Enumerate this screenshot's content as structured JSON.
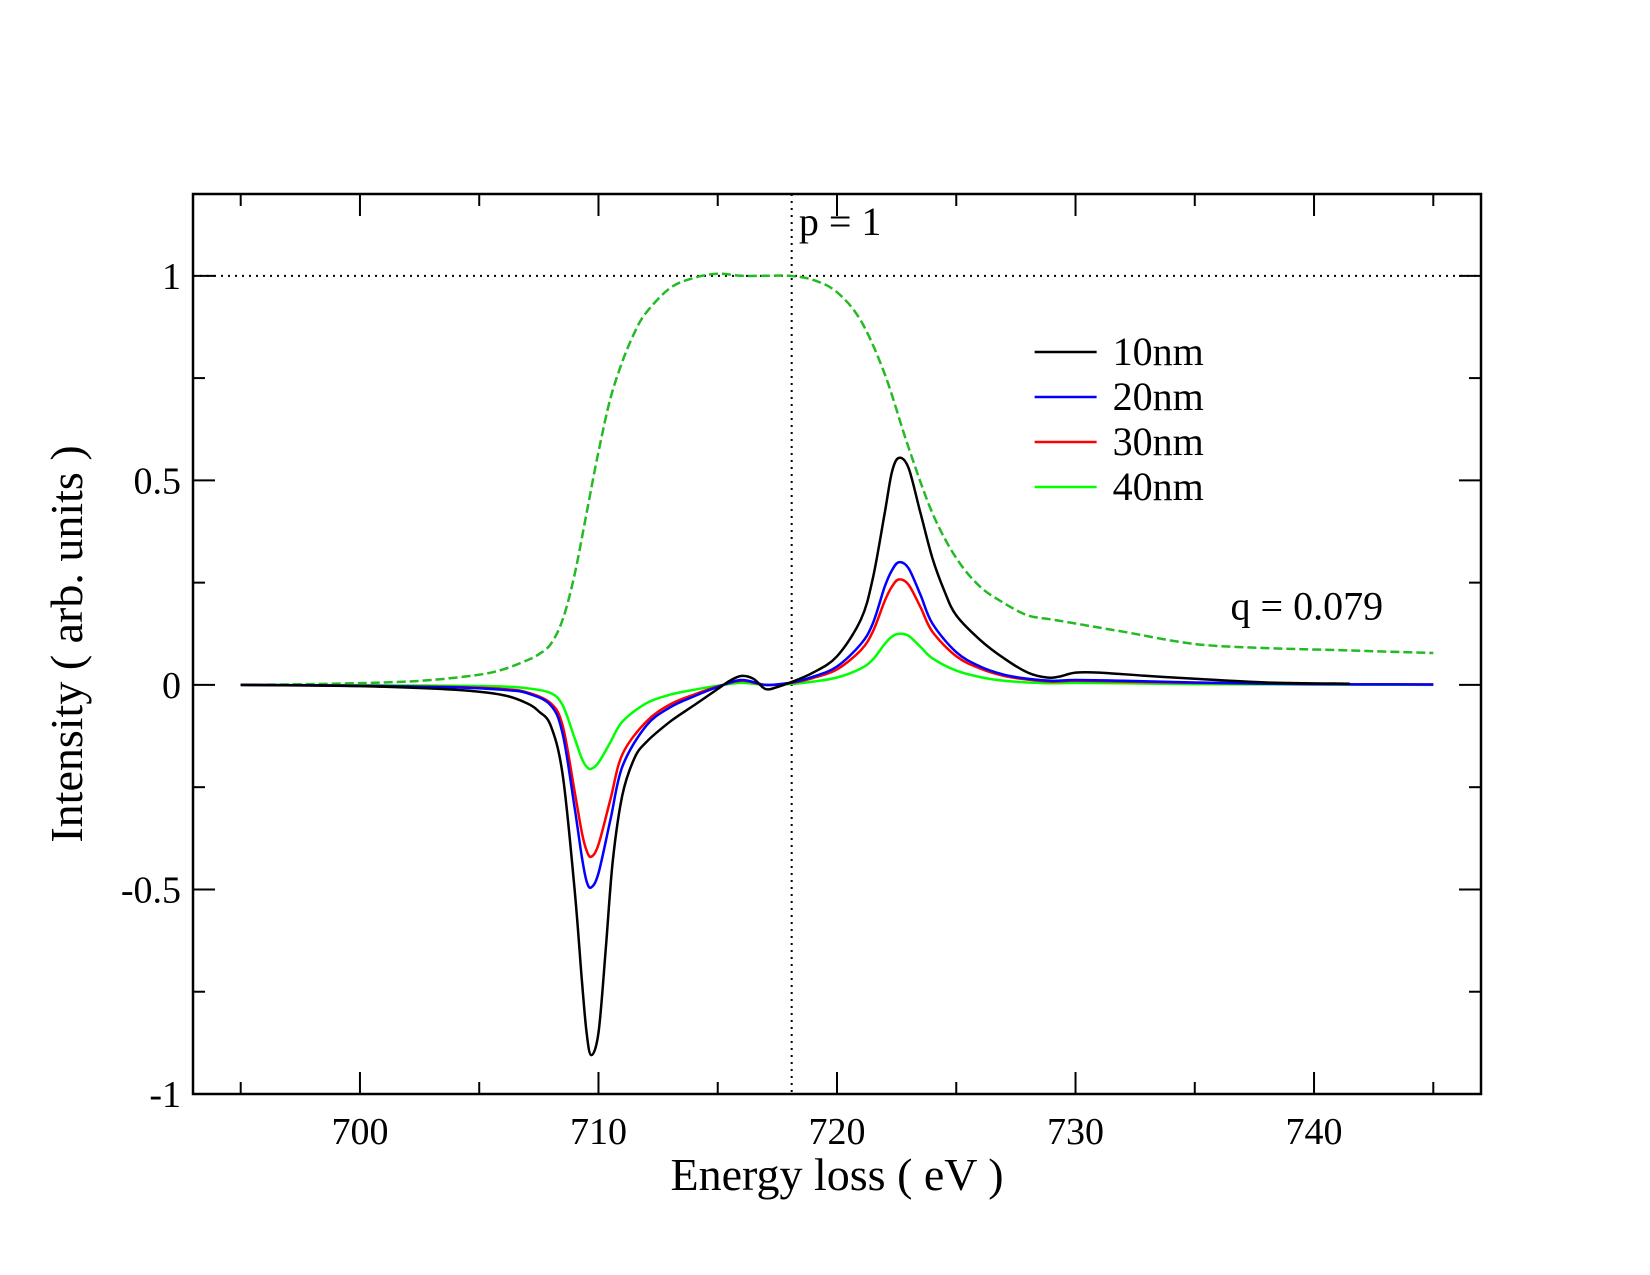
{
  "chart_data": {
    "type": "line",
    "title": "",
    "xlabel": "Energy loss ( eV )",
    "ylabel": "Intensity ( arb. units )",
    "xlim": [
      693,
      747
    ],
    "ylim": [
      -1,
      1.2
    ],
    "x_major_ticks": [
      700,
      710,
      720,
      730,
      740
    ],
    "x_tick_labels": [
      "700",
      "710",
      "720",
      "730",
      "740"
    ],
    "x_minor_ticks": [
      695,
      705,
      715,
      725,
      735,
      745
    ],
    "y_major_ticks": [
      -1,
      -0.5,
      0,
      0.5,
      1
    ],
    "y_tick_labels": [
      "-1",
      "-0.5",
      "0",
      "0.5",
      "1"
    ],
    "y_minor_ticks": [
      -0.75,
      -0.25,
      0.25,
      0.75
    ],
    "grid": false,
    "legend_position": "top-right",
    "reference_lines": [
      {
        "orientation": "horizontal",
        "value": 1,
        "style": "dotted",
        "color": "#000000"
      },
      {
        "orientation": "vertical",
        "value": 718.1,
        "style": "dotted",
        "color": "#000000"
      }
    ],
    "annotations": [
      {
        "text": "p = 1",
        "x": 718.4,
        "y": 1.1
      },
      {
        "text": "q = 0.079",
        "x": 736.5,
        "y": 0.16
      }
    ],
    "series": [
      {
        "name": "10nm",
        "color": "#000000",
        "style": "solid",
        "x": [
          695,
          700,
          704,
          706,
          707,
          707.5,
          708,
          708.5,
          709,
          709.3,
          709.5,
          709.7,
          710,
          710.3,
          710.6,
          711,
          711.5,
          712,
          713,
          714,
          715,
          715.5,
          716,
          716.5,
          717,
          717.5,
          718,
          719,
          720,
          721,
          721.5,
          722,
          722.3,
          722.6,
          723,
          723.5,
          724,
          724.5,
          725,
          726,
          727,
          728,
          728.8,
          729.3,
          730,
          731,
          733,
          735,
          738,
          741.5
        ],
        "values": [
          0,
          -0.003,
          -0.012,
          -0.025,
          -0.045,
          -0.065,
          -0.1,
          -0.22,
          -0.5,
          -0.72,
          -0.85,
          -0.905,
          -0.85,
          -0.65,
          -0.43,
          -0.27,
          -0.18,
          -0.14,
          -0.09,
          -0.05,
          -0.01,
          0.01,
          0.022,
          0.015,
          -0.01,
          -0.005,
          0.005,
          0.03,
          0.07,
          0.16,
          0.26,
          0.42,
          0.52,
          0.555,
          0.53,
          0.42,
          0.31,
          0.23,
          0.17,
          0.11,
          0.065,
          0.03,
          0.018,
          0.02,
          0.03,
          0.03,
          0.022,
          0.015,
          0.006,
          0.003
        ]
      },
      {
        "name": "20nm",
        "color": "#0000ff",
        "style": "solid",
        "x": [
          695,
          700,
          704,
          706,
          707,
          708,
          708.5,
          709,
          709.3,
          709.5,
          709.7,
          710,
          710.5,
          711,
          712,
          713,
          714,
          715,
          716,
          717,
          718,
          719,
          720,
          721,
          721.5,
          722,
          722.3,
          722.6,
          723,
          723.5,
          724,
          725,
          726,
          727,
          728,
          729,
          730,
          732,
          735,
          740,
          745
        ],
        "values": [
          0,
          -0.002,
          -0.006,
          -0.012,
          -0.02,
          -0.05,
          -0.12,
          -0.3,
          -0.42,
          -0.48,
          -0.495,
          -0.46,
          -0.33,
          -0.2,
          -0.1,
          -0.055,
          -0.028,
          -0.005,
          0.012,
          0.0,
          0.005,
          0.02,
          0.045,
          0.1,
          0.15,
          0.24,
          0.28,
          0.3,
          0.285,
          0.22,
          0.15,
          0.08,
          0.045,
          0.025,
          0.015,
          0.01,
          0.012,
          0.01,
          0.006,
          0.002,
          0.001
        ]
      },
      {
        "name": "30nm",
        "color": "#ff0000",
        "style": "solid",
        "x": [
          695,
          700,
          704,
          706,
          707,
          708,
          708.5,
          709,
          709.3,
          709.5,
          709.7,
          710,
          710.5,
          711,
          712,
          713,
          714,
          715,
          716,
          717,
          718,
          719,
          720,
          721,
          721.5,
          722,
          722.3,
          722.6,
          723,
          723.5,
          724,
          725,
          726,
          727,
          728,
          729,
          730,
          732,
          735,
          740,
          745
        ],
        "values": [
          0,
          -0.002,
          -0.005,
          -0.01,
          -0.018,
          -0.045,
          -0.1,
          -0.26,
          -0.36,
          -0.405,
          -0.42,
          -0.39,
          -0.28,
          -0.17,
          -0.09,
          -0.048,
          -0.024,
          -0.004,
          0.01,
          0.0,
          0.004,
          0.017,
          0.038,
          0.085,
          0.13,
          0.205,
          0.24,
          0.258,
          0.245,
          0.19,
          0.13,
          0.07,
          0.04,
          0.022,
          0.013,
          0.008,
          0.01,
          0.008,
          0.005,
          0.002,
          0.001
        ]
      },
      {
        "name": "40nm",
        "color": "#00ff00",
        "style": "solid",
        "x": [
          695,
          700,
          704,
          706,
          707,
          708,
          708.5,
          709,
          709.3,
          709.5,
          709.7,
          710,
          710.5,
          711,
          712,
          713,
          714,
          715,
          716,
          717,
          718,
          719,
          720,
          721,
          721.5,
          722,
          722.3,
          722.6,
          723,
          723.5,
          724,
          725,
          726,
          727,
          728,
          729,
          730,
          732,
          735,
          740,
          745
        ],
        "values": [
          0,
          -0.001,
          -0.002,
          -0.004,
          -0.008,
          -0.02,
          -0.05,
          -0.13,
          -0.18,
          -0.2,
          -0.205,
          -0.19,
          -0.14,
          -0.09,
          -0.045,
          -0.024,
          -0.012,
          -0.002,
          0.005,
          0.0,
          0.002,
          0.008,
          0.018,
          0.04,
          0.062,
          0.1,
          0.118,
          0.125,
          0.12,
          0.093,
          0.065,
          0.035,
          0.019,
          0.01,
          0.006,
          0.004,
          0.005,
          0.004,
          0.002,
          0.001,
          0.0
        ]
      },
      {
        "name": "",
        "color": "#22bb22",
        "style": "dashed",
        "x": [
          695,
          698,
          701,
          703,
          705,
          706,
          707,
          707.5,
          708,
          708.5,
          709,
          709.5,
          710,
          710.5,
          711,
          711.5,
          712,
          713,
          714,
          715,
          716,
          717,
          718,
          719,
          720,
          721,
          722,
          723,
          724,
          725,
          726,
          727,
          728,
          729,
          730,
          732,
          735,
          738,
          741,
          745
        ],
        "values": [
          0,
          0.002,
          0.006,
          0.012,
          0.025,
          0.038,
          0.06,
          0.075,
          0.1,
          0.16,
          0.27,
          0.42,
          0.57,
          0.7,
          0.79,
          0.86,
          0.91,
          0.97,
          0.995,
          1.005,
          1.0,
          1.0,
          1.0,
          0.99,
          0.96,
          0.89,
          0.76,
          0.58,
          0.42,
          0.31,
          0.24,
          0.2,
          0.17,
          0.16,
          0.15,
          0.13,
          0.1,
          0.09,
          0.085,
          0.078
        ]
      }
    ]
  }
}
